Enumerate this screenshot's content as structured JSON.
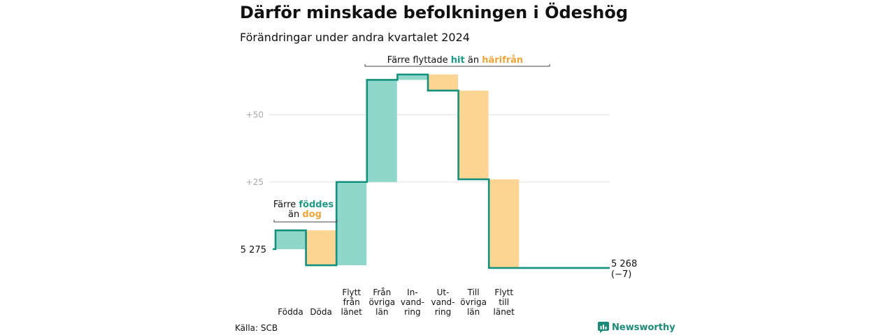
{
  "title": "Därför minskade befolkningen i Ödeshög",
  "subtitle": "Förändringar under andra kvartalet 2024",
  "source": "Källa: SCB",
  "brand": "Newsworthy",
  "colors": {
    "increase": "#8fd7cb",
    "decrease": "#fcd592",
    "line": "#14907e",
    "accent_teal": "#1b9a86",
    "accent_orange": "#f0a53a"
  },
  "annotations": {
    "births_vs_deaths": {
      "line1_prefix": "Färre ",
      "line1_highlight": "föddes",
      "line2_prefix": "än ",
      "line2_highlight": "dog"
    },
    "migration": {
      "prefix": "Färre flyttade ",
      "highlight1": "hit",
      "middle": " än ",
      "highlight2": "härifrån"
    }
  },
  "chart_data": {
    "type": "waterfall",
    "title": "Därför minskade befolkningen i Ödeshög",
    "subtitle": "Förändringar under andra kvartalet 2024",
    "start_label": "5 275",
    "end_label": "5 268",
    "end_change_label": "(−7)",
    "start_value": 0,
    "y_ticks": [
      {
        "value": 25,
        "label": "+25"
      },
      {
        "value": 50,
        "label": "+50"
      }
    ],
    "ylim": [
      -4,
      66
    ],
    "grid": true,
    "steps": [
      {
        "label_lines": [
          "Födda"
        ],
        "change": 7,
        "kind": "increase"
      },
      {
        "label_lines": [
          "Döda"
        ],
        "change": -13,
        "kind": "decrease"
      },
      {
        "label_lines": [
          "Flytt",
          "från",
          "länet"
        ],
        "change": 31,
        "kind": "increase"
      },
      {
        "label_lines": [
          "Från",
          "övriga",
          "län"
        ],
        "change": 38,
        "kind": "increase"
      },
      {
        "label_lines": [
          "In-",
          "vand-",
          "ring"
        ],
        "change": 2,
        "kind": "increase"
      },
      {
        "label_lines": [
          "Ut-",
          "vand-",
          "ring"
        ],
        "change": -6,
        "kind": "decrease"
      },
      {
        "label_lines": [
          "Till",
          "övriga",
          "län"
        ],
        "change": -33,
        "kind": "decrease"
      },
      {
        "label_lines": [
          "Flytt",
          "till",
          "länet"
        ],
        "change": -33,
        "kind": "decrease"
      }
    ]
  }
}
